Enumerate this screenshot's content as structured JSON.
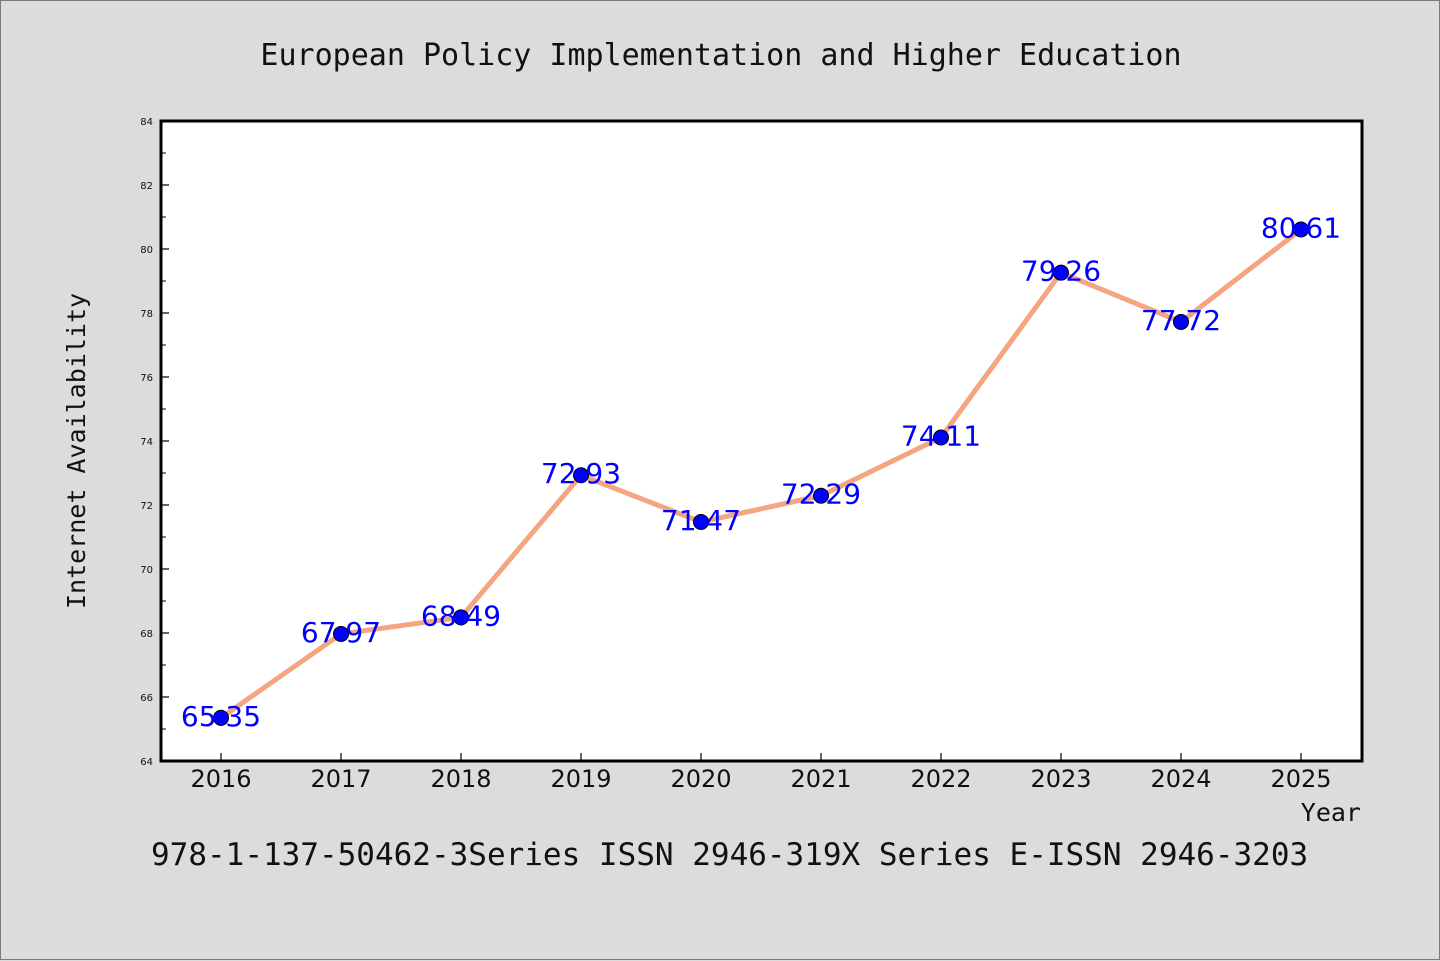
{
  "chart_data": {
    "type": "line",
    "title": "European Policy Implementation and Higher Education",
    "xlabel": "Year",
    "ylabel": "Internet Availability",
    "categories": [
      "2016",
      "2017",
      "2018",
      "2019",
      "2020",
      "2021",
      "2022",
      "2023",
      "2024",
      "2025"
    ],
    "series": [
      {
        "values": [
          65.35,
          67.97,
          68.49,
          72.93,
          71.47,
          72.29,
          74.11,
          79.26,
          77.72,
          80.61
        ],
        "data_labels": [
          "65.35",
          "67.97",
          "68.49",
          "72.93",
          "71.47",
          "72.29",
          "74.11",
          "79.26",
          "77.72",
          "80.61"
        ]
      }
    ],
    "ylim": [
      64,
      84
    ],
    "yticks": [
      "64",
      "66",
      "68",
      "70",
      "72",
      "74",
      "76",
      "78",
      "80",
      "82",
      "84"
    ],
    "grid": false,
    "legend": "none",
    "colors": {
      "line": "#f4a582",
      "marker": "#0000ff",
      "data_label": "#0000ff",
      "background": "#dcdcdc",
      "plot_background": "#ffffff"
    }
  },
  "footer": {
    "text": "978-1-137-50462-3Series ISSN 2946-319X Series E-ISSN 2946-3203"
  }
}
